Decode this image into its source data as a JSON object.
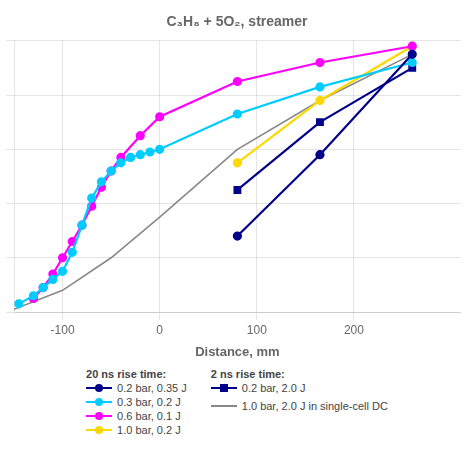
{
  "chart_data": {
    "type": "line",
    "title": "C₃H₈ + 5O₂, streamer",
    "xlabel": "Distance, mm",
    "xlim": [
      -150,
      310
    ],
    "xticks": [
      -100,
      0,
      100,
      200
    ],
    "ylim": [
      0,
      10
    ],
    "yticks": [
      0,
      2,
      4,
      6,
      8,
      10
    ],
    "grid": true,
    "tick_labels": "x",
    "legend": "bottom",
    "series": [
      {
        "name": "0.2 bar, 0.35 J",
        "group": "20 ns rise time:",
        "color": "#00008B",
        "marker": "circle",
        "x": [
          80,
          165,
          260
        ],
        "values": [
          2.8,
          5.8,
          9.5
        ]
      },
      {
        "name": "0.3 bar, 0.2 J",
        "group": "20 ns rise time:",
        "color": "#00CCFF",
        "marker": "circle",
        "x": [
          -145,
          -130,
          -120,
          -110,
          -100,
          -90,
          -80,
          -70,
          -60,
          -50,
          -40,
          -30,
          -20,
          -10,
          0,
          80,
          165,
          260
        ],
        "values": [
          0.3,
          0.6,
          0.9,
          1.2,
          1.5,
          2.2,
          3.2,
          4.2,
          4.8,
          5.2,
          5.5,
          5.7,
          5.8,
          5.9,
          6.0,
          7.3,
          8.3,
          9.2
        ]
      },
      {
        "name": "0.6 bar, 0.1 J",
        "group": "20 ns rise time:",
        "color": "#FF00FF",
        "marker": "circle",
        "x": [
          -130,
          -120,
          -110,
          -100,
          -90,
          -80,
          -70,
          -60,
          -50,
          -40,
          -20,
          0,
          80,
          165,
          260
        ],
        "values": [
          0.5,
          0.9,
          1.4,
          2.0,
          2.6,
          3.2,
          3.9,
          4.6,
          5.2,
          5.7,
          6.5,
          7.2,
          8.5,
          9.2,
          9.8
        ]
      },
      {
        "name": "1.0 bar, 0.2 J",
        "group": "20 ns rise time:",
        "color": "#FFD700",
        "marker": "circle",
        "x": [
          80,
          165,
          260
        ],
        "values": [
          5.5,
          7.8,
          9.8
        ]
      },
      {
        "name": "0.2 bar, 2.0 J",
        "group": "2 ns rise time:",
        "color": "#00008B",
        "marker": "square",
        "x": [
          80,
          165,
          260
        ],
        "values": [
          4.5,
          7.0,
          9.0
        ]
      },
      {
        "name": "1.0 bar, 2.0 J in single-cell DC",
        "color": "#888888",
        "marker": "none",
        "x": [
          -150,
          -100,
          -50,
          0,
          80,
          165,
          260
        ],
        "values": [
          0.1,
          0.8,
          2.0,
          3.5,
          6.0,
          7.8,
          9.5
        ]
      }
    ]
  }
}
